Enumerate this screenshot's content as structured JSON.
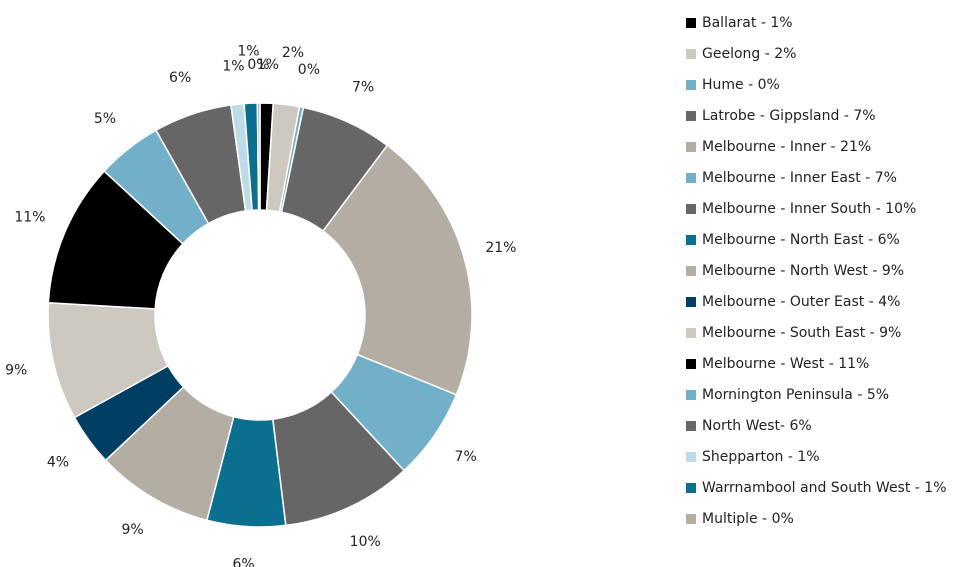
{
  "chart_data": {
    "type": "donut",
    "categories": [
      "Ballarat - 1%",
      "Geelong - 2%",
      "Hume - 0%",
      "Latrobe - Gippsland - 7%",
      "Melbourne - Inner - 21%",
      "Melbourne - Inner East - 7%",
      "Melbourne - Inner South - 10%",
      "Melbourne - North East - 6%",
      "Melbourne - North West - 9%",
      "Melbourne - Outer East - 4%",
      "Melbourne - South East - 9%",
      "Melbourne - West - 11%",
      "Mornington Peninsula - 5%",
      "North West- 6%",
      "Shepparton - 1%",
      "Warrnambool and South West - 1%",
      "Multiple - 0%"
    ],
    "values": [
      1,
      2,
      0.3,
      7,
      21,
      7,
      10,
      6,
      9,
      4,
      9,
      11,
      5,
      6,
      1,
      1,
      0.2
    ],
    "value_labels": [
      "1%",
      "2%",
      "0%",
      "7%",
      "21%",
      "7%",
      "10%",
      "6%",
      "9%",
      "4%",
      "9%",
      "11%",
      "5%",
      "6%",
      "1%",
      "1%",
      "0%"
    ],
    "colors": [
      "#000000",
      "#cdc8c0",
      "#72afc8",
      "#666666",
      "#b4ada4",
      "#72afc8",
      "#666666",
      "#0b6f8f",
      "#b4ada4",
      "#003e63",
      "#cdc8c0",
      "#000000",
      "#72afc8",
      "#666666",
      "#bcdce8",
      "#0b6f8f",
      "#b4ada4"
    ],
    "legend": "right"
  }
}
